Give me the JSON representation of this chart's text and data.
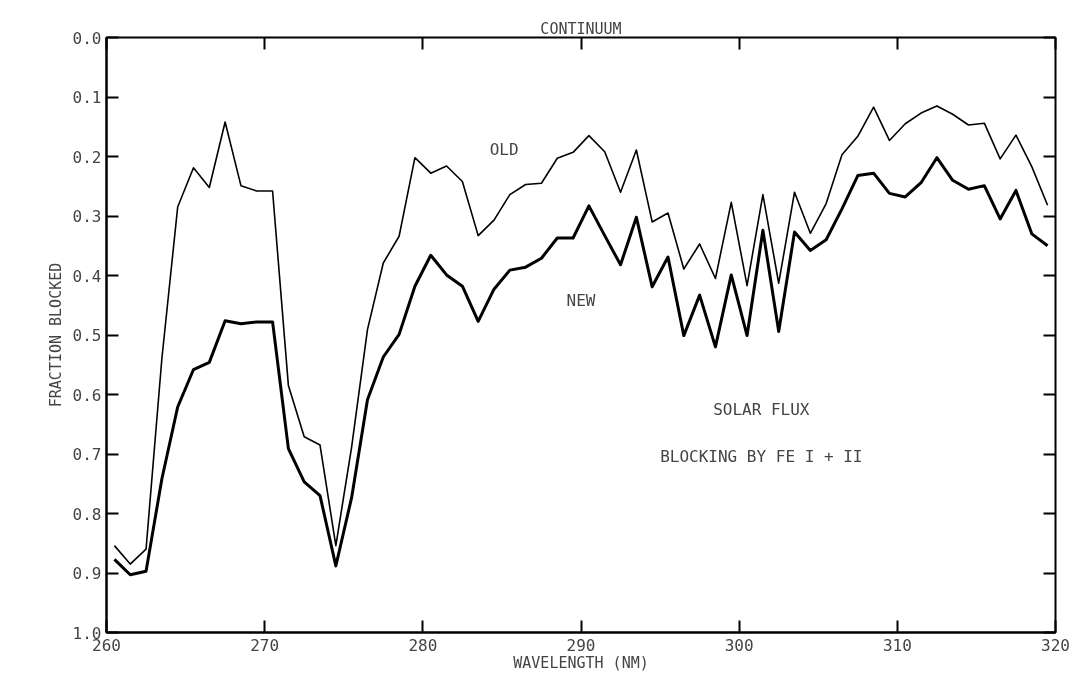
{
  "chart_data": {
    "type": "line",
    "title": "CONTINUUM",
    "xlabel": "WAVELENGTH (NM)",
    "ylabel": "FRACTION BLOCKED",
    "x": [
      260.5,
      261.5,
      262.5,
      263.5,
      264.5,
      265.5,
      266.5,
      267.5,
      268.5,
      269.5,
      270.5,
      271.5,
      272.5,
      273.5,
      274.5,
      275.5,
      276.5,
      277.5,
      278.5,
      279.5,
      280.5,
      281.5,
      282.5,
      283.5,
      284.5,
      285.5,
      286.5,
      287.5,
      288.5,
      289.5,
      290.5,
      291.5,
      292.5,
      293.5,
      294.5,
      295.5,
      296.5,
      297.5,
      298.5,
      299.5,
      300.5,
      301.5,
      302.5,
      303.5,
      304.5,
      305.5,
      306.5,
      307.5,
      308.5,
      309.5,
      310.5,
      311.5,
      312.5,
      313.5,
      314.5,
      315.5,
      316.5,
      317.5,
      318.5,
      319.5
    ],
    "series": [
      {
        "color": "#000000",
        "values": [
          0.854,
          0.885,
          0.86,
          0.54,
          0.285,
          0.219,
          0.252,
          0.142,
          0.249,
          0.258,
          0.258,
          0.585,
          0.671,
          0.685,
          0.854,
          0.688,
          0.491,
          0.379,
          0.334,
          0.202,
          0.228,
          0.216,
          0.242,
          0.333,
          0.307,
          0.264,
          0.247,
          0.245,
          0.203,
          0.193,
          0.165,
          0.192,
          0.26,
          0.189,
          0.31,
          0.295,
          0.389,
          0.347,
          0.405,
          0.277,
          0.417,
          0.264,
          0.413,
          0.26,
          0.329,
          0.279,
          0.197,
          0.166,
          0.117,
          0.173,
          0.145,
          0.127,
          0.115,
          0.129,
          0.147,
          0.144,
          0.204,
          0.164,
          0.217,
          0.282
        ]
      },
      {
        "color": "#000000",
        "values": [
          0.877,
          0.903,
          0.897,
          0.742,
          0.621,
          0.558,
          0.546,
          0.476,
          0.481,
          0.478,
          0.478,
          0.691,
          0.747,
          0.77,
          0.888,
          0.773,
          0.609,
          0.537,
          0.499,
          0.418,
          0.366,
          0.399,
          0.418,
          0.477,
          0.423,
          0.391,
          0.386,
          0.371,
          0.337,
          0.337,
          0.283,
          0.333,
          0.382,
          0.302,
          0.419,
          0.369,
          0.501,
          0.433,
          0.52,
          0.399,
          0.501,
          0.324,
          0.494,
          0.327,
          0.358,
          0.34,
          0.288,
          0.232,
          0.228,
          0.262,
          0.268,
          0.244,
          0.202,
          0.24,
          0.255,
          0.249,
          0.305,
          0.257,
          0.33,
          0.35
        ]
      }
    ],
    "annotations": [
      "OLD",
      "NEW",
      "SOLAR FLUX",
      "BLOCKING BY FE I + II"
    ],
    "xlim": [
      260,
      320
    ],
    "ylim": [
      1.0,
      0.0
    ],
    "xticks": [
      260,
      270,
      280,
      290,
      300,
      310,
      320
    ],
    "yticks": [
      {
        "value": 0.0,
        "label": "0.0"
      },
      0.1,
      0.2,
      0.3,
      0.4,
      0.5,
      0.6,
      0.7,
      0.8,
      0.9,
      {
        "value": 1.0,
        "label": "1.0"
      }
    ],
    "grid": false,
    "marker": "none",
    "line_style": "solid"
  }
}
